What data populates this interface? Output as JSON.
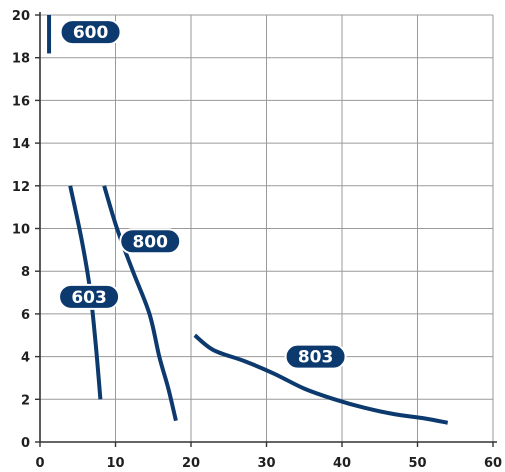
{
  "chart_data": {
    "type": "line",
    "title": "",
    "xlabel": "",
    "ylabel": "",
    "xlim": [
      0,
      60
    ],
    "ylim": [
      0,
      20
    ],
    "x_ticks": [
      0,
      10,
      20,
      30,
      40,
      50,
      60
    ],
    "y_ticks": [
      0,
      2,
      4,
      6,
      8,
      10,
      12,
      14,
      16,
      18,
      20
    ],
    "x_tick_labels": [
      "0",
      "10",
      "20",
      "30",
      "40",
      "50",
      "60"
    ],
    "y_tick_labels": [
      "0",
      "2",
      "4",
      "6",
      "8",
      "10",
      "12",
      "14",
      "16",
      "18",
      "20"
    ],
    "grid": true,
    "line_color": "#0d3a6e",
    "grid_color": "#9a9a9a",
    "series": [
      {
        "name": "600",
        "label_at": [
          6.7,
          19.2
        ],
        "points": [
          [
            1.2,
            18.2
          ],
          [
            1.2,
            20
          ]
        ]
      },
      {
        "name": "603",
        "label_at": [
          6.5,
          6.8
        ],
        "points": [
          [
            4,
            12
          ],
          [
            5.5,
            9.5
          ],
          [
            6.6,
            7.2
          ],
          [
            7.4,
            4.5
          ],
          [
            8,
            2
          ]
        ]
      },
      {
        "name": "800",
        "label_at": [
          14.6,
          9.4
        ],
        "points": [
          [
            8.5,
            12
          ],
          [
            10.2,
            10
          ],
          [
            12.3,
            8
          ],
          [
            14.5,
            6
          ],
          [
            15.8,
            4
          ],
          [
            17,
            2.5
          ],
          [
            18,
            1
          ]
        ]
      },
      {
        "name": "803",
        "label_at": [
          36.5,
          4
        ],
        "points": [
          [
            20.5,
            5
          ],
          [
            23,
            4.3
          ],
          [
            27,
            3.8
          ],
          [
            31,
            3.2
          ],
          [
            35,
            2.5
          ],
          [
            39,
            2
          ],
          [
            43,
            1.6
          ],
          [
            47,
            1.3
          ],
          [
            51,
            1.1
          ],
          [
            54,
            0.9
          ]
        ]
      }
    ]
  }
}
